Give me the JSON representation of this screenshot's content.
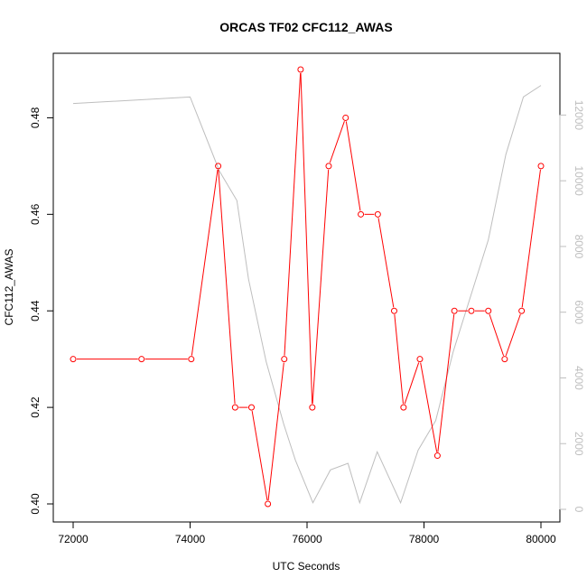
{
  "chart_data": {
    "type": "line",
    "title": "ORCAS TF02 CFC112_AWAS",
    "xlabel": "UTC Seconds",
    "ylabel": "CFC112_AWAS",
    "xlim": [
      72000,
      80000
    ],
    "ylim": [
      0.4,
      0.49
    ],
    "y2lim": [
      0,
      13000
    ],
    "x_ticks": [
      72000,
      74000,
      76000,
      78000,
      80000
    ],
    "y_ticks": [
      0.4,
      0.42,
      0.44,
      0.46,
      0.48
    ],
    "y2_ticks": [
      0,
      2000,
      4000,
      6000,
      8000,
      10000,
      12000
    ],
    "grid": false,
    "colors": {
      "series": "#ff0000",
      "altitude": "#bebebe",
      "axis": "#000000",
      "right_axis": "#bebebe"
    },
    "series": [
      {
        "x": [
          72000,
          73170,
          74020,
          74480,
          74770,
          75050,
          75330,
          75610,
          75890,
          76090,
          76370,
          76660,
          76920,
          77210,
          77490,
          77650,
          77930,
          78230,
          78520,
          78810,
          79100,
          79380,
          79670,
          80000
        ],
        "values": [
          0.43,
          0.43,
          0.43,
          0.47,
          0.42,
          0.42,
          0.4,
          0.43,
          0.49,
          0.42,
          0.47,
          0.48,
          0.46,
          0.46,
          0.44,
          0.42,
          0.43,
          0.41,
          0.44,
          0.44,
          0.44,
          0.43,
          0.44,
          0.47
        ]
      },
      {
        "axis": "right",
        "x": [
          72000,
          74000,
          74500,
          74800,
          75000,
          75300,
          75600,
          75800,
          76100,
          76400,
          76700,
          76900,
          77200,
          77600,
          77900,
          78200,
          78500,
          78800,
          79100,
          79400,
          79700,
          80000
        ],
        "values": [
          12350,
          12550,
          10300,
          9400,
          7000,
          4500,
          2600,
          1500,
          200,
          1200,
          1400,
          200,
          1750,
          200,
          1800,
          2700,
          4800,
          6500,
          8200,
          10800,
          12550,
          12900
        ]
      }
    ]
  }
}
